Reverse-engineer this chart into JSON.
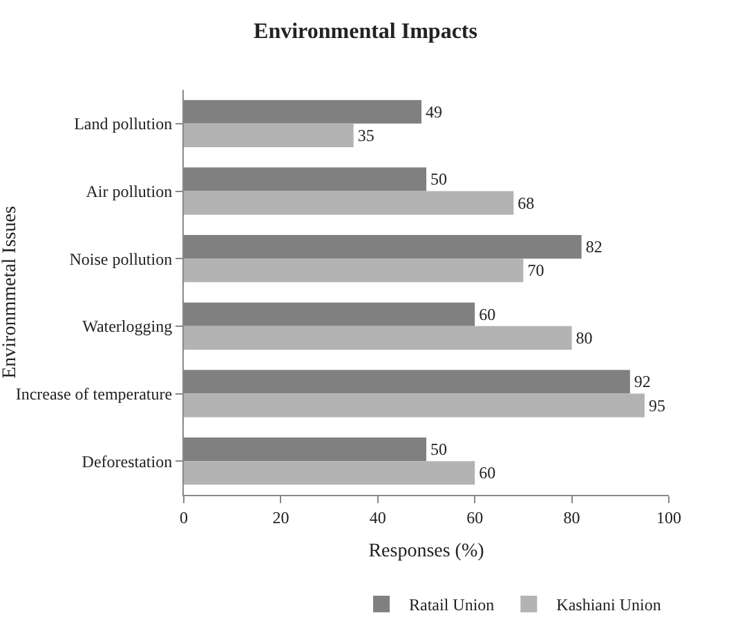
{
  "chart_data": {
    "type": "bar",
    "orientation": "horizontal",
    "title": "Environmental Impacts",
    "xlabel": "Responses (%)",
    "ylabel": "Environmmetal Issues",
    "categories": [
      "Land pollution",
      "Air pollution",
      "Noise pollution",
      "Waterlogging",
      "Increase of temperature",
      "Deforestation"
    ],
    "series": [
      {
        "name": "Ratail Union",
        "color": "#808080",
        "values": [
          49,
          50,
          82,
          60,
          92,
          50
        ]
      },
      {
        "name": "Kashiani Union",
        "color": "#b3b3b3",
        "values": [
          35,
          68,
          70,
          80,
          95,
          60
        ]
      }
    ],
    "xlim": [
      0,
      100
    ],
    "xticks": [
      0,
      20,
      40,
      60,
      80,
      100
    ],
    "grid": false,
    "legend": "bottom right",
    "data_labels": true
  }
}
